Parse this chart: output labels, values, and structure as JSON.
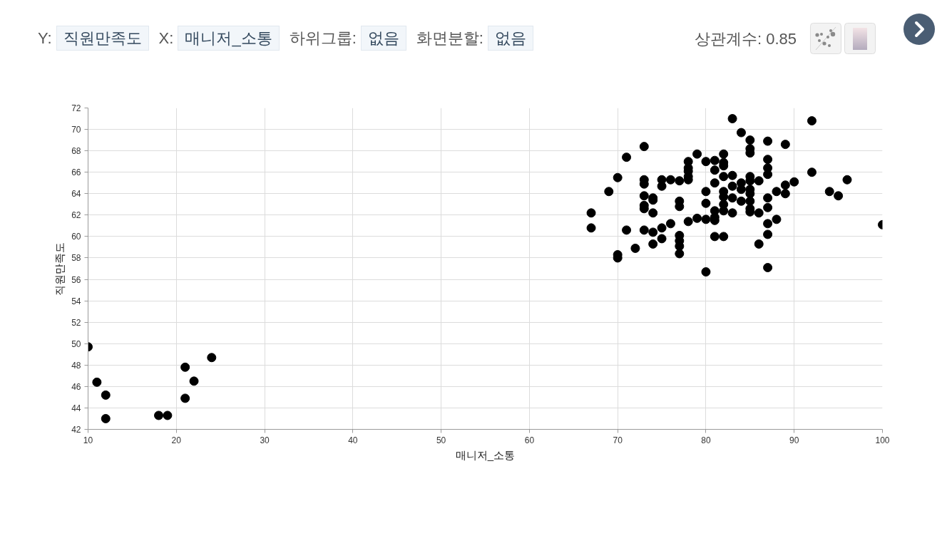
{
  "chart_data": {
    "type": "scatter",
    "xlabel": "매니저_소통",
    "ylabel": "직원만족도",
    "annotations": [
      "Y:",
      "직원만족도",
      "X:",
      "매니저_소통",
      "하위그룹:",
      "없음",
      "화면분할:",
      "없음",
      "상관계수: 0.85"
    ],
    "x": [
      10,
      11,
      12,
      12,
      18,
      19,
      21,
      21,
      22,
      24,
      67,
      67,
      69,
      70,
      70,
      70,
      71,
      71,
      72,
      73,
      73,
      73,
      73,
      73,
      73,
      73,
      74,
      74,
      74,
      74,
      74,
      75,
      75,
      75,
      75,
      76,
      76,
      77,
      77,
      77,
      77,
      77,
      77,
      77,
      78,
      78,
      78,
      78,
      78,
      78,
      79,
      79,
      80,
      80,
      80,
      80,
      80,
      81,
      81,
      81,
      81,
      81,
      81,
      81,
      82,
      82,
      82,
      82,
      82,
      82,
      82,
      82,
      82,
      83,
      83,
      83,
      83,
      83,
      84,
      84,
      84,
      84,
      85,
      85,
      85,
      85,
      85,
      85,
      85,
      85,
      85,
      85,
      86,
      86,
      86,
      87,
      87,
      87,
      87,
      87,
      87,
      87,
      87,
      87,
      88,
      88,
      89,
      89,
      89,
      90,
      92,
      92,
      94,
      95,
      96,
      100
    ],
    "values": [
      49.7,
      46.4,
      45.2,
      43.0,
      43.3,
      43.3,
      47.8,
      44.9,
      46.5,
      48.7,
      62.2,
      60.8,
      64.2,
      65.5,
      58.3,
      58.0,
      67.4,
      60.6,
      58.9,
      68.4,
      65.3,
      64.9,
      63.8,
      62.9,
      62.6,
      60.6,
      63.6,
      63.4,
      62.2,
      60.4,
      59.3,
      65.3,
      64.7,
      60.8,
      59.8,
      65.3,
      61.2,
      65.2,
      63.3,
      62.8,
      60.1,
      59.6,
      59.1,
      58.4,
      67.0,
      66.4,
      66.1,
      65.6,
      65.3,
      61.4,
      67.7,
      61.7,
      67.0,
      64.2,
      63.1,
      61.6,
      56.7,
      67.1,
      66.2,
      65.0,
      62.4,
      61.8,
      61.5,
      60.0,
      67.7,
      66.9,
      66.6,
      65.6,
      64.2,
      63.7,
      63.0,
      62.4,
      60.0,
      71.0,
      65.7,
      64.7,
      63.6,
      62.2,
      69.7,
      65.0,
      64.4,
      63.3,
      69.0,
      68.2,
      67.8,
      65.6,
      65.2,
      64.4,
      64.0,
      63.3,
      62.6,
      62.3,
      65.2,
      62.2,
      59.3,
      68.9,
      67.2,
      66.4,
      65.8,
      63.6,
      62.7,
      61.2,
      60.2,
      57.1,
      64.2,
      61.6,
      68.6,
      64.8,
      64.0,
      65.1,
      70.8,
      66.0,
      64.2,
      63.8,
      65.3,
      61.1
    ],
    "color": "#000000",
    "marker": "circle",
    "grid": true,
    "xlim": [
      10,
      100
    ],
    "xticks": [
      10,
      20,
      30,
      40,
      50,
      60,
      70,
      80,
      90,
      100
    ],
    "ylim": [
      42,
      72
    ],
    "yticks": [
      42,
      44,
      46,
      48,
      50,
      52,
      54,
      56,
      58,
      60,
      62,
      64,
      66,
      68,
      70,
      72
    ]
  }
}
